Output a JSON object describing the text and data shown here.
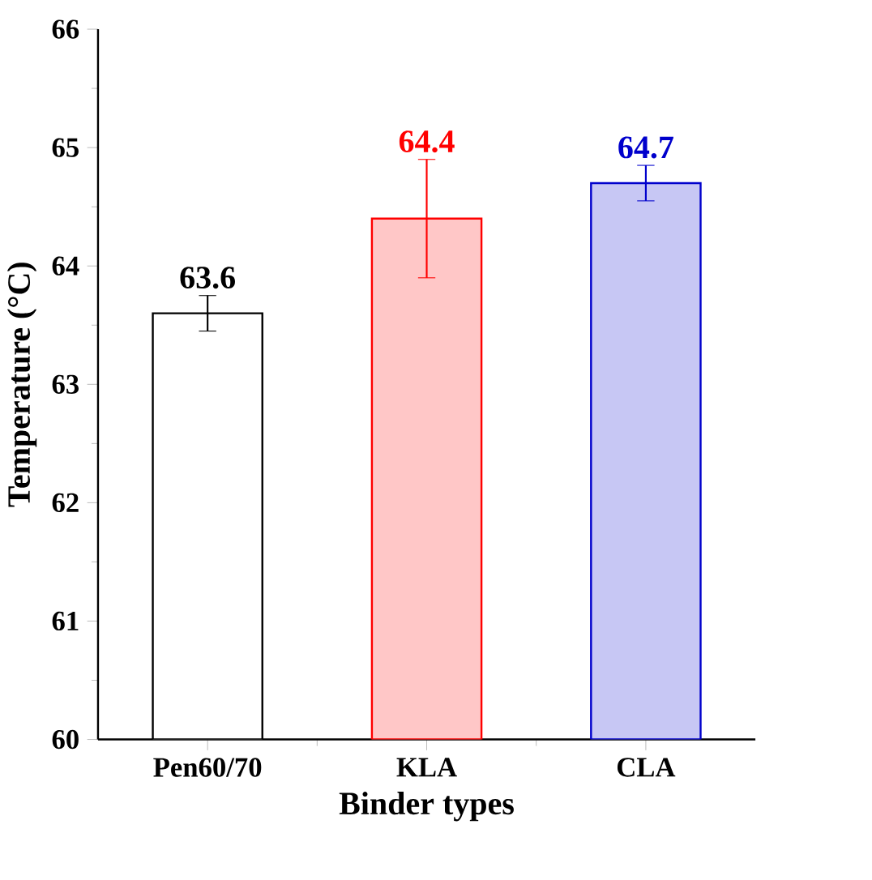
{
  "chart_data": {
    "type": "bar",
    "xlabel": "Binder types",
    "ylabel": "Temperature (°C)",
    "categories": [
      "Pen60/70",
      "KLA",
      "CLA"
    ],
    "values": [
      63.6,
      64.4,
      64.7
    ],
    "errors": [
      0.15,
      0.5,
      0.15
    ],
    "colors": [
      "#000000",
      "#ff0000",
      "#0000cc"
    ],
    "ylim": [
      60,
      66
    ],
    "yticks": [
      60,
      61,
      62,
      63,
      64,
      65,
      66
    ],
    "data_labels": true,
    "grid": false
  }
}
